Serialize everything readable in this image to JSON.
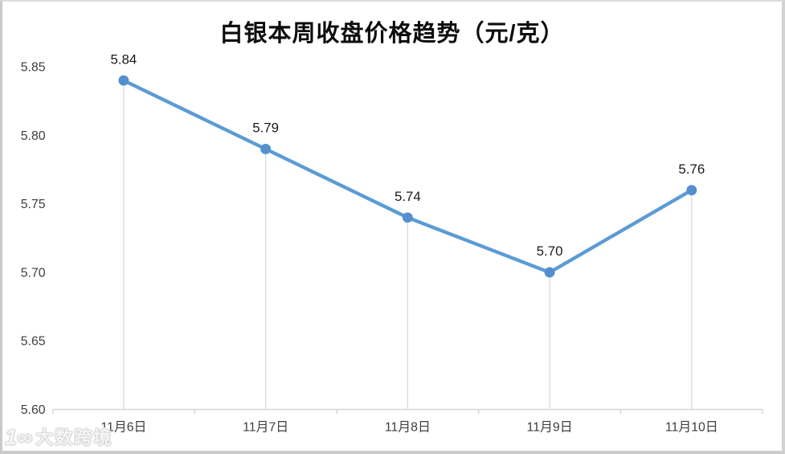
{
  "chart_data": {
    "type": "line",
    "title": "白银本周收盘价格趋势（元/克）",
    "categories": [
      "11月6日",
      "11月7日",
      "11月8日",
      "11月9日",
      "11月10日"
    ],
    "values": [
      5.84,
      5.79,
      5.74,
      5.7,
      5.76
    ],
    "data_labels": [
      "5.84",
      "5.79",
      "5.74",
      "5.70",
      "5.76"
    ],
    "ylim": [
      5.6,
      5.85
    ],
    "y_ticks": [
      "5.85",
      "5.80",
      "5.75",
      "5.70",
      "5.65",
      "5.60"
    ],
    "xlabel": "",
    "ylabel": "",
    "grid": false,
    "legend": "none",
    "marker": "circle",
    "drop_lines": true
  },
  "colors": {
    "line": "#5b9bd5",
    "marker": "#5390cd",
    "axis": "#d9d9d9",
    "drop_line": "#dedede",
    "tick_label": "#3f3f3f",
    "data_label": "#1a1a1a",
    "title": "#0d0d0d",
    "background": "#ffffff"
  },
  "watermark": {
    "logo_glyph": "1∞",
    "text": "大数跨境"
  }
}
